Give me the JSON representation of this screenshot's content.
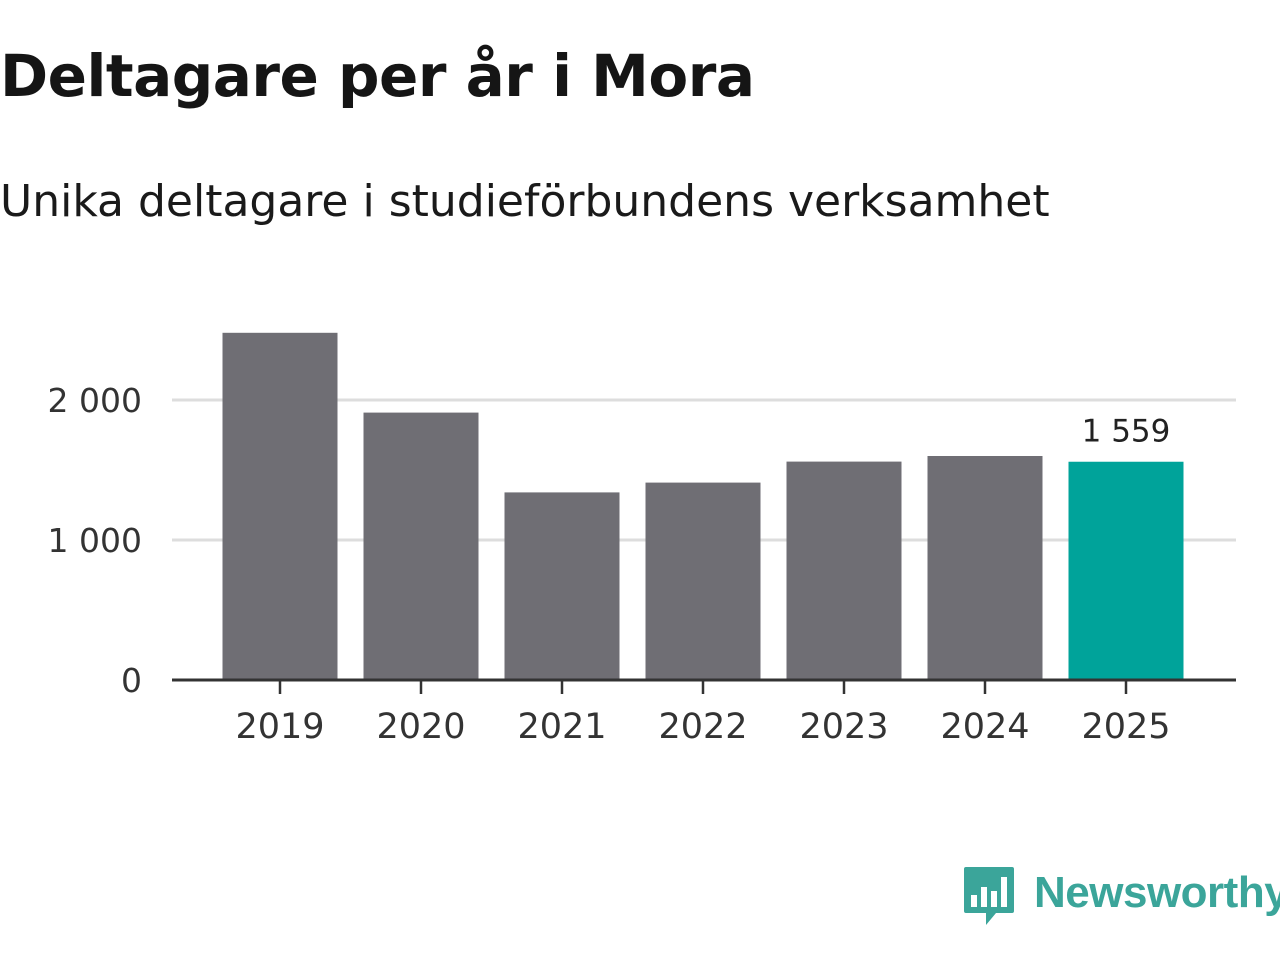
{
  "header": {
    "title": "Deltagare per år i Mora",
    "subtitle": "Unika deltagare i studieförbundens verksamhet"
  },
  "brand": {
    "name": "Newsworthy",
    "icon": "bar-chart-speech-bubble-icon",
    "color": "#3ba59a"
  },
  "chart_data": {
    "type": "bar",
    "title": "Deltagare per år i Mora",
    "subtitle": "Unika deltagare i studieförbundens verksamhet",
    "xlabel": "",
    "ylabel": "",
    "categories": [
      "2019",
      "2020",
      "2021",
      "2022",
      "2023",
      "2024",
      "2025"
    ],
    "values": [
      2480,
      1910,
      1340,
      1410,
      1560,
      1600,
      1559
    ],
    "ylim": [
      0,
      2500
    ],
    "yticks": [
      0,
      1000,
      2000
    ],
    "ytick_labels": [
      "0",
      "1 000",
      "2 000"
    ],
    "grid": true,
    "highlight_index": 6,
    "data_labels": [
      {
        "index": 6,
        "text": "1 559"
      }
    ],
    "colors": {
      "bar": "#6f6e74",
      "highlight": "#00a39a",
      "grid": "#dddddd",
      "axis": "#333333"
    }
  }
}
